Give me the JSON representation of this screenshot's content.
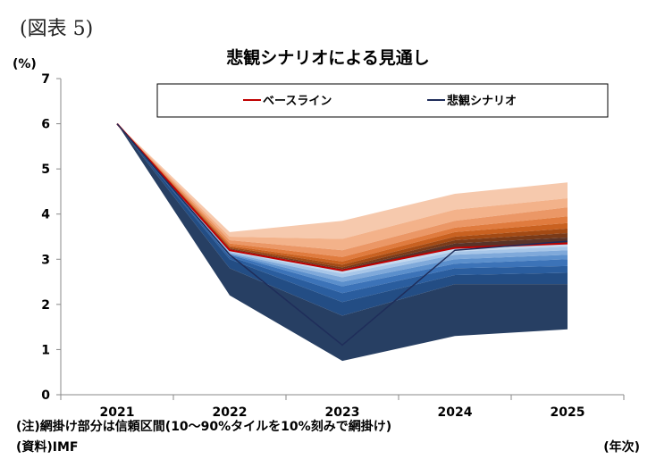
{
  "figure_label": "(図表 5)",
  "chart_data": {
    "type": "area",
    "title": "悲観シナリオによる見通し",
    "ylabel": "(%)",
    "xlabel": "(年次)",
    "ylim": [
      0,
      7
    ],
    "yticks": [
      0,
      1,
      2,
      3,
      4,
      5,
      6,
      7
    ],
    "categories": [
      "2021",
      "2022",
      "2023",
      "2024",
      "2025"
    ],
    "legend_position": "top",
    "series": [
      {
        "name": "ベースライン",
        "color": "#c00000",
        "values": [
          6.0,
          3.2,
          2.75,
          3.25,
          3.35
        ]
      },
      {
        "name": "悲観シナリオ",
        "color": "#1f2d5a",
        "values": [
          6.0,
          3.1,
          1.1,
          3.2,
          3.4
        ]
      }
    ],
    "fan_upper": {
      "colors": [
        "#f6c9ad",
        "#f3b28a",
        "#eb9766",
        "#e07b3e",
        "#c96120",
        "#a34a14",
        "#7a3a18",
        "#5a3328"
      ],
      "bounds": [
        [
          6.0,
          6.0,
          6.0,
          6.0,
          6.0,
          6.0,
          6.0,
          6.0,
          6.0
        ],
        [
          3.6,
          3.5,
          3.42,
          3.35,
          3.3,
          3.27,
          3.24,
          3.22,
          3.2
        ],
        [
          3.85,
          3.45,
          3.2,
          3.05,
          2.95,
          2.88,
          2.82,
          2.78,
          2.75
        ],
        [
          4.45,
          4.1,
          3.85,
          3.7,
          3.6,
          3.5,
          3.42,
          3.35,
          3.25
        ],
        [
          4.7,
          4.35,
          4.15,
          3.95,
          3.8,
          3.68,
          3.58,
          3.48,
          3.35
        ]
      ]
    },
    "fan_lower": {
      "colors": [
        "#c5d9ef",
        "#a7c6e8",
        "#7fa9da",
        "#5b8fcc",
        "#3c73b8",
        "#2a5d9e",
        "#234d84",
        "#273f63"
      ],
      "bounds": [
        [
          6.0,
          6.0,
          6.0,
          6.0,
          6.0,
          6.0,
          6.0,
          6.0,
          6.0
        ],
        [
          3.2,
          3.17,
          3.14,
          3.12,
          3.1,
          3.06,
          3.0,
          2.8,
          2.2
        ],
        [
          2.75,
          2.68,
          2.6,
          2.5,
          2.4,
          2.25,
          2.05,
          1.75,
          0.75
        ],
        [
          3.25,
          3.17,
          3.1,
          3.0,
          2.9,
          2.8,
          2.65,
          2.45,
          1.3
        ],
        [
          3.35,
          3.28,
          3.2,
          3.1,
          3.0,
          2.85,
          2.7,
          2.45,
          1.45
        ]
      ]
    }
  },
  "notes": {
    "note1": "(注)網掛け部分は信頼区間(10～90%タイルを10%刻みで網掛け)",
    "note2": "(資料)IMF"
  }
}
